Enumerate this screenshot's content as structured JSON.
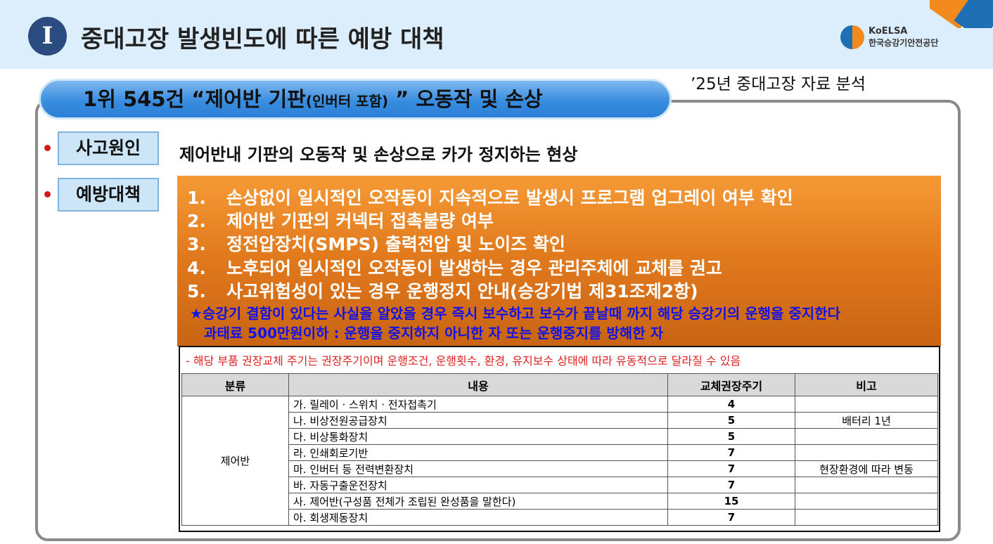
{
  "header": {
    "badge": "I",
    "title": "중대고장 발생빈도에 따른 예방 대책",
    "logo_en": "KoELSA",
    "logo_ko": "한국승강기안전공단"
  },
  "subtitle": {
    "main": "1위 545건 “제어반 기판",
    "small": "(인버터 포함)",
    "end": " ” 오동작 및 손상"
  },
  "analysis": "’25년 중대고장 자료 분석",
  "cause": {
    "label": "사고원인",
    "text": "제어반내 기판의 오동작 및 손상으로 카가 정지하는 현상"
  },
  "prevention": {
    "label": "예방대책",
    "items": [
      {
        "n": "1.",
        "t": "손상없이 일시적인 오작동이 지속적으로 발생시 프로그램 업그레이 여부 확인"
      },
      {
        "n": "2.",
        "t": "제어반 기판의 커넥터 접촉불량 여부"
      },
      {
        "n": "3.",
        "t": "정전압장치(SMPS) 출력전압 및 노이즈 확인"
      },
      {
        "n": "4.",
        "t": "노후되어 일시적인 오작동이 발생하는 경우 관리주체에 교체를 권고"
      },
      {
        "n": "5.",
        "t": "사고위험성이 있는 경우 운행정지 안내(승강기법 제31조제2항)"
      }
    ],
    "warning1": "★승강기 결함이 있다는 사실을 알았을 경우 즉시 보수하고 보수가 끝날때 까지 해당 승강기의 운행을 중지한다",
    "warning2": "과태료 500만원이하 : 운행을 중지하지 아니한 자 또는  운행중지를 방해한 자"
  },
  "table": {
    "note": "- 해당 부품 권장교체 주기는 권장주기이며 운행조건, 운행횟수, 환경, 유지보수 상태에 따라 유동적으로 달라질 수 있음",
    "headers": [
      "분류",
      "내용",
      "교체권장주기",
      "비고"
    ],
    "category": "제어반",
    "rows": [
      {
        "content": "가. 릴레이 · 스위치 · 전자접촉기",
        "cycle": "4",
        "note": ""
      },
      {
        "content": "나. 비상전원공급장치",
        "cycle": "5",
        "note": "배터리 1년"
      },
      {
        "content": "다. 비상통화장치",
        "cycle": "5",
        "note": ""
      },
      {
        "content": "라. 인쇄회로기반",
        "cycle": "7",
        "note": ""
      },
      {
        "content": "마. 인버터 등 전력변환장치",
        "cycle": "7",
        "note": "현장환경에 따라 변동"
      },
      {
        "content": "바. 자동구출운전장치",
        "cycle": "7",
        "note": ""
      },
      {
        "content": "사. 제어반(구성품 전체가 조립된 완성품을 말한다)",
        "cycle": "15",
        "note": ""
      },
      {
        "content": "아. 회생제동장치",
        "cycle": "7",
        "note": ""
      }
    ]
  }
}
